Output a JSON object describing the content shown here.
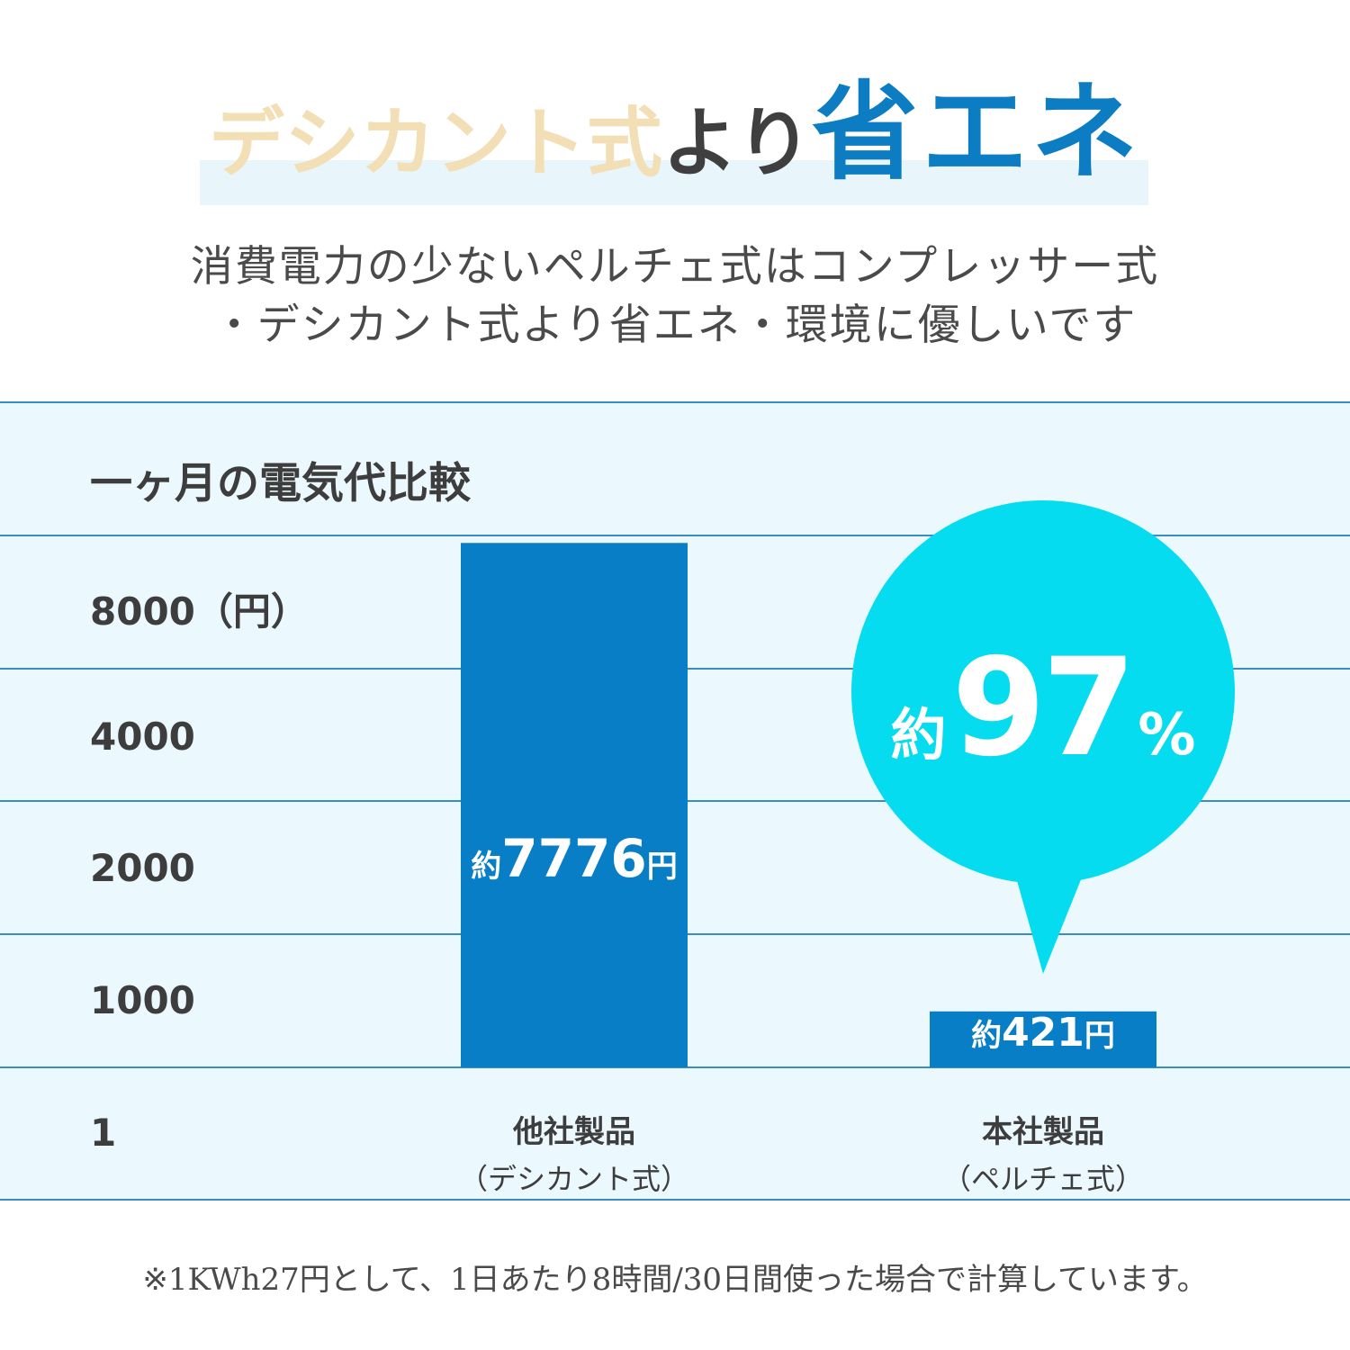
{
  "header": {
    "title_part1": "デシカント式",
    "title_part2": "より",
    "title_part3": "省エネ",
    "subtitle_line1": "消費電力の少ないペルチェ式はコンプレッサー式",
    "subtitle_line2": "・デシカント式より省エネ・環境に優しいです"
  },
  "callout": {
    "prefix": "約",
    "value": "97",
    "unit": "%"
  },
  "footnote": "※1KWh27円として、1日あたり8時間/30日間使った場合で計算しています。",
  "colors": {
    "bar": "#077ec5",
    "bubble": "#05dcf0",
    "panel": "#ebf8fd",
    "gridline": "#3a8cc4",
    "accent": "#0c7dc3"
  },
  "chart_data": {
    "type": "bar",
    "title": "一ヶ月の電気代比較",
    "y_ticks": [
      "8000（円）",
      "4000",
      "2000",
      "1000",
      "1"
    ],
    "categories": [
      {
        "name": "他社製品",
        "sub": "（デシカント式）"
      },
      {
        "name": "本社製品",
        "sub": "（ペルチェ式）"
      }
    ],
    "values": [
      7776,
      421
    ],
    "value_labels": [
      {
        "prefix": "約",
        "value": "7776",
        "unit": "円"
      },
      {
        "prefix": "約",
        "value": "421",
        "unit": "円"
      }
    ],
    "legend": "none",
    "grid": true
  }
}
